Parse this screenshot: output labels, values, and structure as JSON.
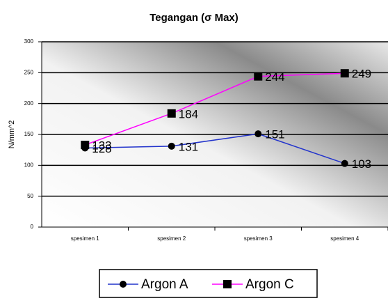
{
  "chart_data": {
    "type": "line",
    "title": "Tegangan (σ Max)",
    "y_label": "N/mm^2",
    "categories": [
      "spesimen 1",
      "spesimen 2",
      "spesimen 3",
      "spesimen 4"
    ],
    "series": [
      {
        "name": "Argon A",
        "color": "#2233cc",
        "marker": "circle",
        "values": [
          128,
          131,
          151,
          103
        ]
      },
      {
        "name": "Argon C",
        "color": "#ff00ff",
        "marker": "square",
        "values": [
          133,
          184,
          244,
          249
        ]
      }
    ],
    "ylim": [
      0,
      300
    ],
    "yticks": [
      0,
      50,
      100,
      150,
      200,
      250,
      300
    ],
    "grid": true,
    "legend": "bottom"
  }
}
